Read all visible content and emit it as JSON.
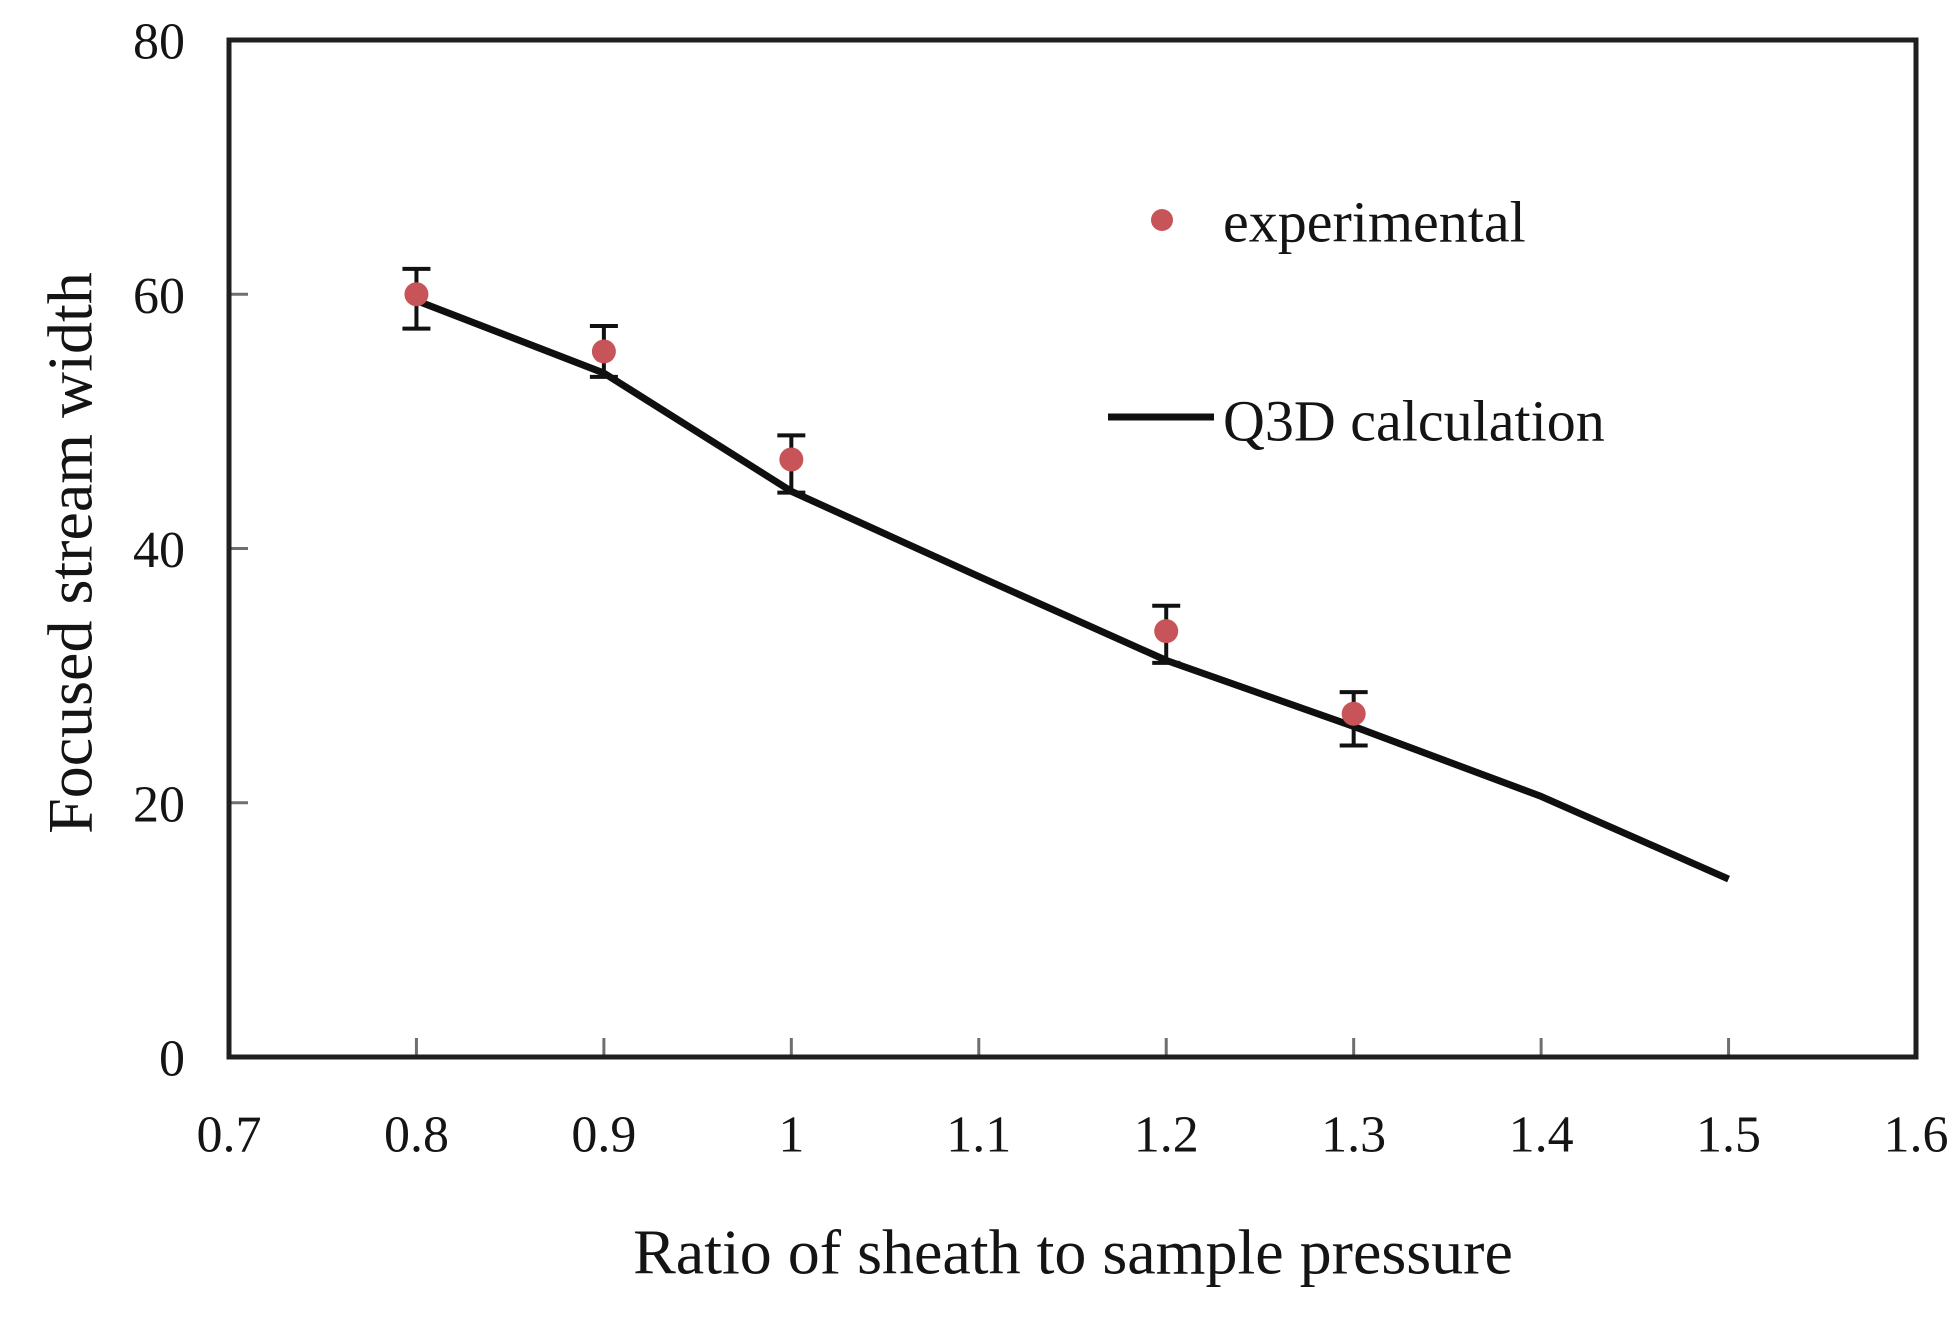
{
  "figure": {
    "background": "#ffffff",
    "frame_color": "#1f1f1f",
    "tick_color": "#6f6f6f",
    "text_color": "#141414"
  },
  "chart_data": {
    "type": "scatter",
    "title": "",
    "xlabel": "Ratio of sheath to sample pressure",
    "ylabel": "Focused stream width",
    "xlim": [
      0.7,
      1.6
    ],
    "ylim": [
      0,
      80
    ],
    "x_tick_values": [
      0.7,
      0.8,
      0.9,
      1.0,
      1.1,
      1.2,
      1.3,
      1.4,
      1.5,
      1.6
    ],
    "x_tick_labels": [
      "0.7",
      "0.8",
      "0.9",
      "1",
      "1.1",
      "1.2",
      "1.3",
      "1.4",
      "1.5",
      "1.6"
    ],
    "y_tick_values": [
      0,
      20,
      40,
      60,
      80
    ],
    "y_tick_labels": [
      "0",
      "20",
      "40",
      "60",
      "80"
    ],
    "grid": false,
    "legend": {
      "position": "inside-top-right",
      "entries": [
        "experimental",
        "Q3D calculation"
      ]
    },
    "series": [
      {
        "name": "experimental",
        "type": "scatter",
        "marker": "circle",
        "color": "#c65459",
        "x": [
          0.8,
          0.9,
          1.0,
          1.2,
          1.3
        ],
        "y": [
          60,
          55.5,
          47,
          33.5,
          27
        ],
        "y_err_plus": [
          2.0,
          2.0,
          1.9,
          2.0,
          1.7
        ],
        "y_err_minus": [
          2.7,
          2.0,
          2.6,
          2.5,
          2.5
        ]
      },
      {
        "name": "Q3D calculation",
        "type": "line",
        "color": "#0f0f0f",
        "x": [
          0.8,
          0.9,
          1.0,
          1.1,
          1.2,
          1.3,
          1.4,
          1.5
        ],
        "y": [
          59.5,
          53.8,
          44.5,
          37.8,
          31.2,
          26.0,
          20.5,
          14.0
        ]
      }
    ]
  }
}
